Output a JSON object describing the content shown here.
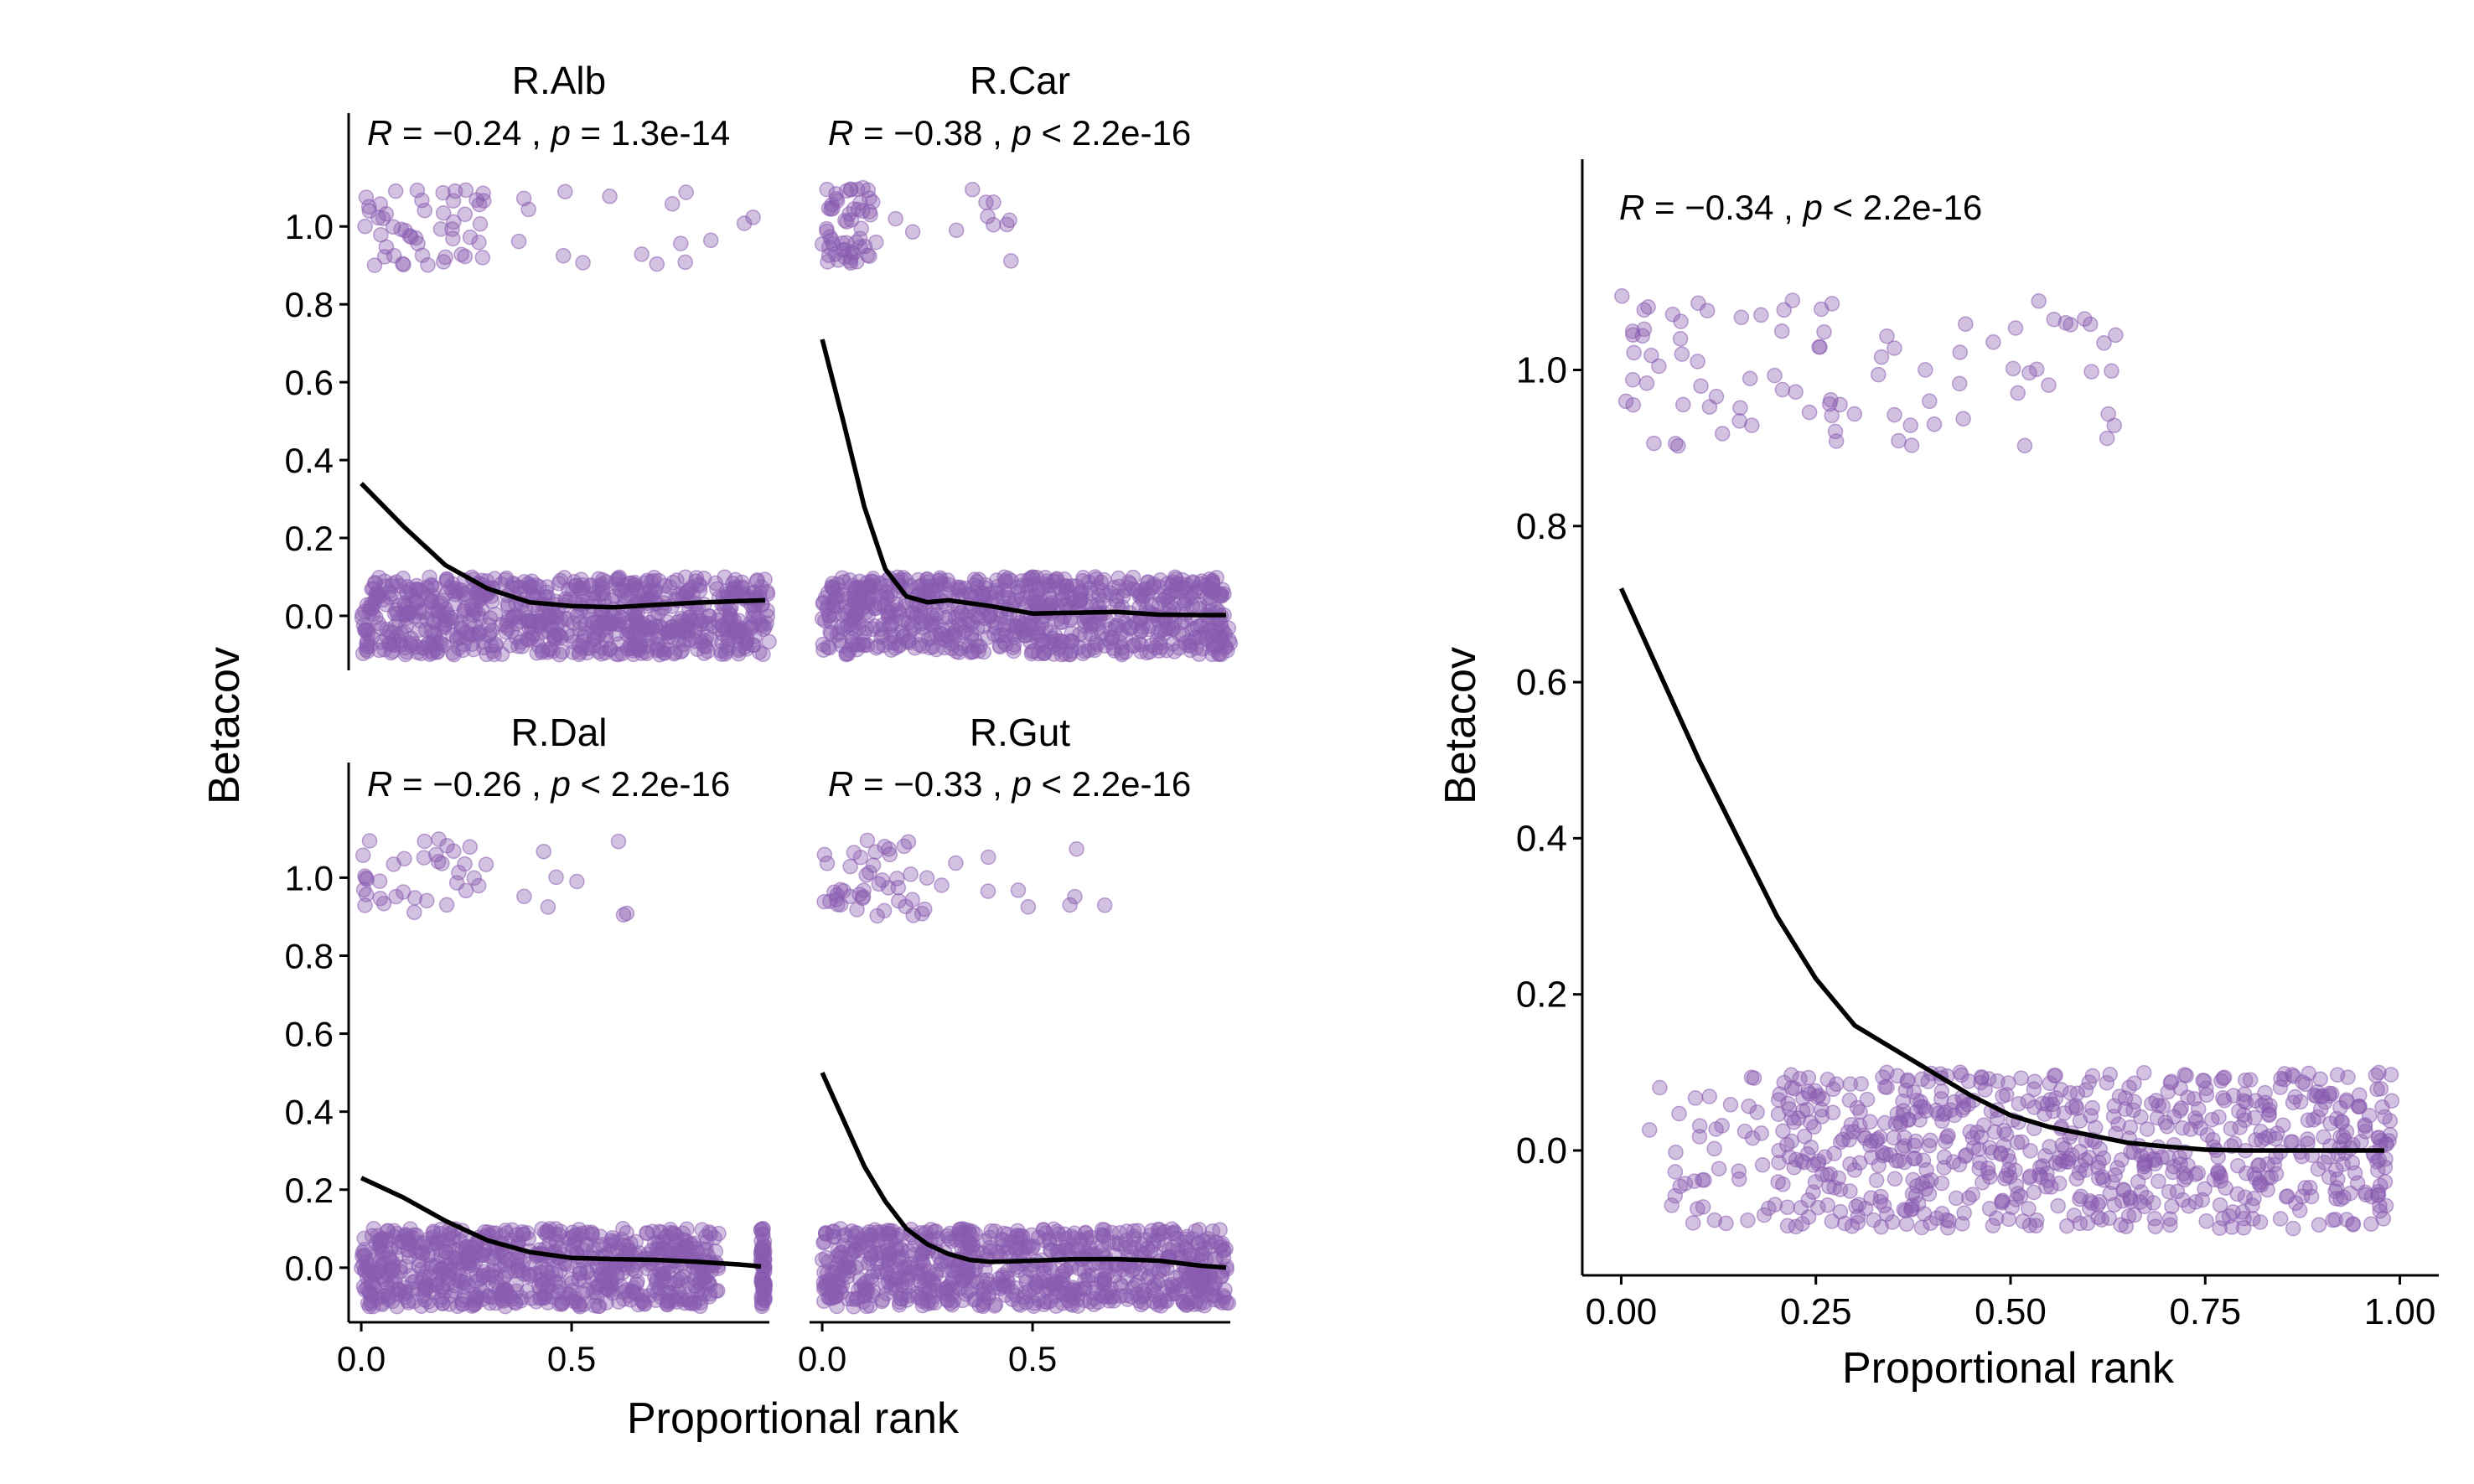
{
  "colors": {
    "points": "#8a5bb0",
    "smooth": "#000000",
    "axis": "#000000"
  },
  "chart_data": [
    {
      "type": "scatter",
      "panel": "R.Alb",
      "title": "R.Alb",
      "annotation": {
        "r_label": "R",
        "r_text": " = −0.24 , ",
        "p_label": "p",
        "p_text": " = 1.3e-14"
      },
      "ylabel": "Betacov",
      "xlabel": "Proportional rank",
      "xlim": [
        -0.03,
        0.97
      ],
      "ylim": [
        -0.14,
        1.22
      ],
      "yticks": [
        0.0,
        0.2,
        0.4,
        0.6,
        0.8,
        1.0
      ],
      "ytick_labels": [
        "0.0",
        "0.2",
        "0.4",
        "0.6",
        "0.8",
        "1.0"
      ],
      "xticks": [],
      "xtick_labels": [],
      "point_groups": [
        {
          "x_range": [
            0.0,
            0.97
          ],
          "y_center": 0.0,
          "y_jitter": 0.1,
          "count": 800
        },
        {
          "x_range": [
            0.0,
            0.3
          ],
          "y_center": 1.0,
          "y_jitter": 0.1,
          "count": 50
        },
        {
          "x_range": [
            0.3,
            0.95
          ],
          "y_center": 1.0,
          "y_jitter": 0.1,
          "count": 16
        }
      ],
      "smooth": {
        "x": [
          0.0,
          0.1,
          0.2,
          0.3,
          0.4,
          0.5,
          0.6,
          0.7,
          0.8,
          0.9,
          0.96
        ],
        "y": [
          0.34,
          0.23,
          0.13,
          0.07,
          0.035,
          0.025,
          0.022,
          0.028,
          0.034,
          0.038,
          0.04
        ]
      }
    },
    {
      "type": "scatter",
      "panel": "R.Car",
      "title": "R.Car",
      "annotation": {
        "r_label": "R",
        "r_text": " = −0.38 , ",
        "p_label": "p",
        "p_text": " < 2.2e-16"
      },
      "ylabel": "Betacov",
      "xlabel": "Proportional rank",
      "xlim": [
        -0.03,
        0.97
      ],
      "ylim": [
        -0.14,
        1.22
      ],
      "yticks": [
        0.0,
        0.2,
        0.4,
        0.6,
        0.8,
        1.0
      ],
      "ytick_labels": [
        "0.0",
        "0.2",
        "0.4",
        "0.6",
        "0.8",
        "1.0"
      ],
      "xticks": [],
      "xtick_labels": [],
      "point_groups": [
        {
          "x_range": [
            0.0,
            0.97
          ],
          "y_center": 0.0,
          "y_jitter": 0.1,
          "count": 800
        },
        {
          "x_range": [
            0.0,
            0.12
          ],
          "y_center": 1.0,
          "y_jitter": 0.1,
          "count": 55
        },
        {
          "x_range": [
            0.12,
            0.45
          ],
          "y_center": 1.0,
          "y_jitter": 0.1,
          "count": 12
        }
      ],
      "smooth": {
        "x": [
          0.0,
          0.05,
          0.1,
          0.15,
          0.2,
          0.25,
          0.3,
          0.4,
          0.5,
          0.6,
          0.7,
          0.8,
          0.9,
          0.96
        ],
        "y": [
          0.71,
          0.5,
          0.28,
          0.12,
          0.05,
          0.035,
          0.04,
          0.025,
          0.006,
          0.008,
          0.01,
          0.003,
          0.002,
          0.002
        ]
      }
    },
    {
      "type": "scatter",
      "panel": "R.Dal",
      "title": "R.Dal",
      "annotation": {
        "r_label": "R",
        "r_text": " = −0.26 , ",
        "p_label": "p",
        "p_text": " < 2.2e-16"
      },
      "ylabel": "Betacov",
      "xlabel": "Proportional rank",
      "xlim": [
        -0.03,
        0.97
      ],
      "ylim": [
        -0.14,
        1.22
      ],
      "yticks": [
        0.0,
        0.2,
        0.4,
        0.6,
        0.8,
        1.0
      ],
      "ytick_labels": [
        "0.0",
        "0.2",
        "0.4",
        "0.6",
        "0.8",
        "1.0"
      ],
      "xticks": [
        0.0,
        0.5
      ],
      "xtick_labels": [
        "0.0",
        "0.5"
      ],
      "point_groups": [
        {
          "x_range": [
            0.0,
            0.85
          ],
          "y_center": 0.0,
          "y_jitter": 0.1,
          "count": 750
        },
        {
          "x_range": [
            0.95,
            0.96
          ],
          "y_center": 0.0,
          "y_jitter": 0.1,
          "count": 60
        },
        {
          "x_range": [
            0.0,
            0.3
          ],
          "y_center": 1.0,
          "y_jitter": 0.1,
          "count": 35
        },
        {
          "x_range": [
            0.3,
            0.72
          ],
          "y_center": 1.0,
          "y_jitter": 0.1,
          "count": 8
        }
      ],
      "smooth": {
        "x": [
          0.0,
          0.1,
          0.2,
          0.3,
          0.4,
          0.5,
          0.6,
          0.7,
          0.8,
          0.9,
          0.95
        ],
        "y": [
          0.23,
          0.18,
          0.12,
          0.07,
          0.04,
          0.025,
          0.022,
          0.02,
          0.015,
          0.008,
          0.003
        ]
      }
    },
    {
      "type": "scatter",
      "panel": "R.Gut",
      "title": "R.Gut",
      "annotation": {
        "r_label": "R",
        "r_text": " = −0.33 , ",
        "p_label": "p",
        "p_text": " < 2.2e-16"
      },
      "ylabel": "Betacov",
      "xlabel": "Proportional rank",
      "xlim": [
        -0.03,
        0.97
      ],
      "ylim": [
        -0.14,
        1.22
      ],
      "yticks": [
        0.0,
        0.2,
        0.4,
        0.6,
        0.8,
        1.0
      ],
      "ytick_labels": [
        "0.0",
        "0.2",
        "0.4",
        "0.6",
        "0.8",
        "1.0"
      ],
      "xticks": [
        0.0,
        0.5
      ],
      "xtick_labels": [
        "0.0",
        "0.5"
      ],
      "point_groups": [
        {
          "x_range": [
            0.0,
            0.97
          ],
          "y_center": 0.0,
          "y_jitter": 0.1,
          "count": 800
        },
        {
          "x_range": [
            0.0,
            0.25
          ],
          "y_center": 1.0,
          "y_jitter": 0.1,
          "count": 45
        },
        {
          "x_range": [
            0.25,
            0.75
          ],
          "y_center": 1.0,
          "y_jitter": 0.1,
          "count": 10
        }
      ],
      "smooth": {
        "x": [
          0.0,
          0.05,
          0.1,
          0.15,
          0.2,
          0.25,
          0.3,
          0.35,
          0.4,
          0.5,
          0.6,
          0.7,
          0.8,
          0.9,
          0.96
        ],
        "y": [
          0.5,
          0.38,
          0.26,
          0.17,
          0.1,
          0.06,
          0.035,
          0.02,
          0.015,
          0.018,
          0.022,
          0.022,
          0.018,
          0.005,
          0.0
        ]
      }
    },
    {
      "type": "scatter",
      "panel": "combined",
      "title": "",
      "annotation": {
        "r_label": "R",
        "r_text": " = −0.34 , ",
        "p_label": "p",
        "p_text": " < 2.2e-16"
      },
      "ylabel": "Betacov",
      "xlabel": "Proportional rank",
      "xlim": [
        -0.05,
        1.05
      ],
      "ylim": [
        -0.16,
        1.27
      ],
      "yticks": [
        0.0,
        0.2,
        0.4,
        0.6,
        0.8,
        1.0
      ],
      "ytick_labels": [
        "0.0",
        "0.2",
        "0.4",
        "0.6",
        "0.8",
        "1.0"
      ],
      "xticks": [
        0.0,
        0.25,
        0.5,
        0.75,
        1.0
      ],
      "xtick_labels": [
        "0.00",
        "0.25",
        "0.50",
        "0.75",
        "1.00"
      ],
      "point_groups": [
        {
          "x_range": [
            0.03,
            0.2
          ],
          "y_center": 0.0,
          "y_jitter": 0.1,
          "count": 40
        },
        {
          "x_range": [
            0.2,
            0.99
          ],
          "y_center": 0.0,
          "y_jitter": 0.1,
          "count": 700
        },
        {
          "x_range": [
            0.0,
            0.64
          ],
          "y_center": 1.0,
          "y_jitter": 0.1,
          "count": 90
        }
      ],
      "smooth": {
        "x": [
          0.0,
          0.05,
          0.1,
          0.15,
          0.2,
          0.25,
          0.3,
          0.35,
          0.4,
          0.45,
          0.5,
          0.55,
          0.6,
          0.65,
          0.7,
          0.75,
          0.8,
          0.9,
          0.98
        ],
        "y": [
          0.72,
          0.61,
          0.5,
          0.4,
          0.3,
          0.22,
          0.16,
          0.13,
          0.1,
          0.07,
          0.045,
          0.03,
          0.02,
          0.01,
          0.005,
          0.001,
          0.0,
          0.0,
          0.0
        ]
      }
    }
  ]
}
